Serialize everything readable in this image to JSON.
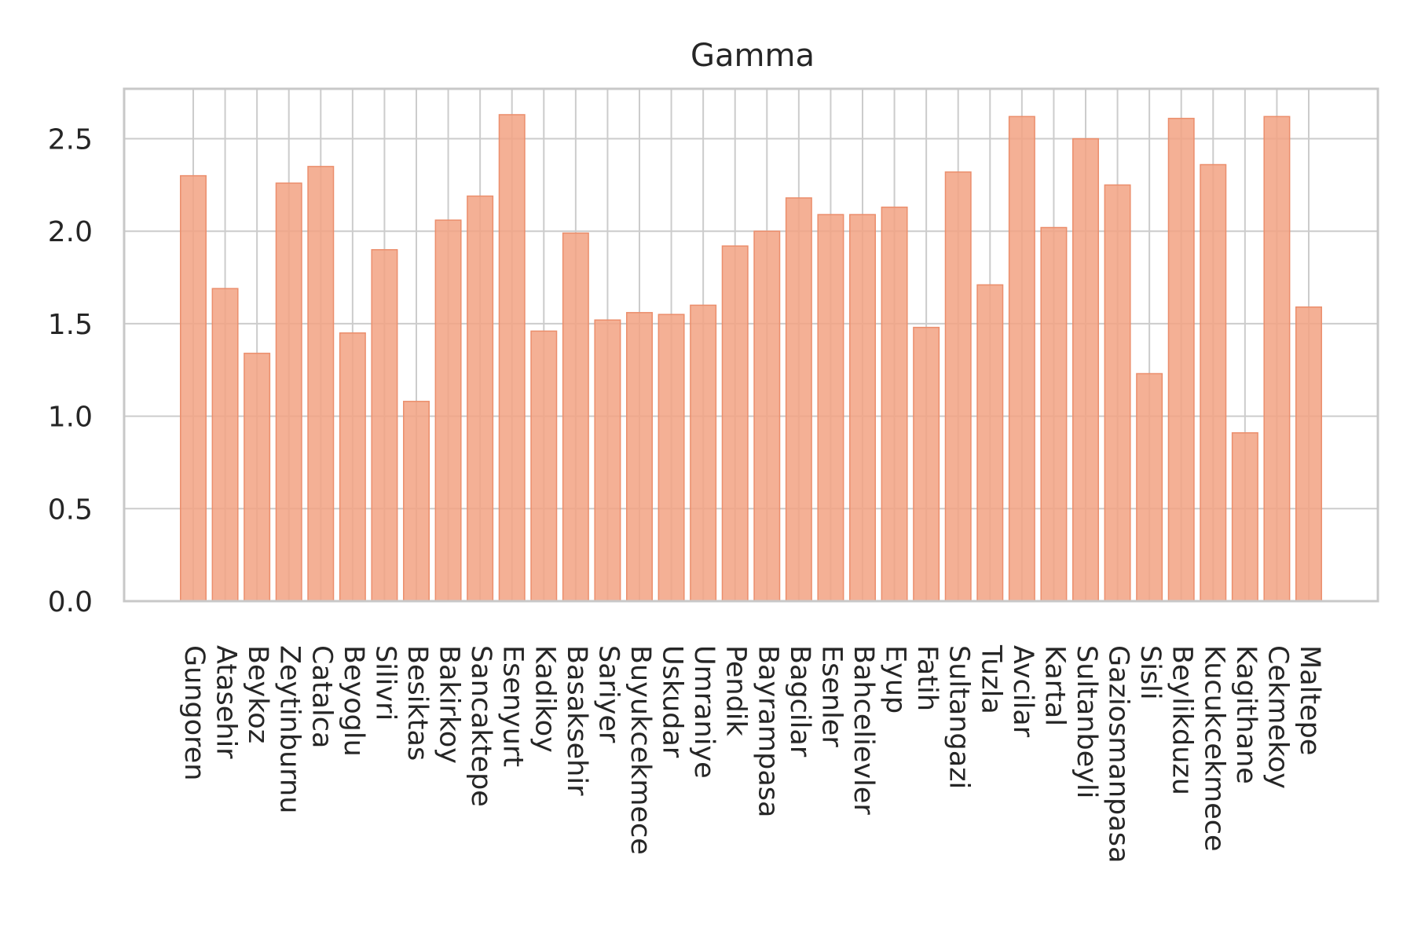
{
  "chart_data": {
    "type": "bar",
    "title": "Gamma",
    "xlabel": "",
    "ylabel": "",
    "ylim": [
      0,
      2.77
    ],
    "yticks": [
      0.0,
      0.5,
      1.0,
      1.5,
      2.0,
      2.5
    ],
    "ytick_labels": [
      "0.0",
      "0.5",
      "1.0",
      "1.5",
      "2.0",
      "2.5"
    ],
    "grid": true,
    "bar_color": "#f2a283",
    "categories": [
      "Gungoren",
      "Atasehir",
      "Beykoz",
      "Zeytinburnu",
      "Catalca",
      "Beyoglu",
      "Silivri",
      "Besiktas",
      "Bakirkoy",
      "Sancaktepe",
      "Esenyurt",
      "Kadikoy",
      "Basaksehir",
      "Sariyer",
      "Buyukcekmece",
      "Uskudar",
      "Umraniye",
      "Pendik",
      "Bayrampasa",
      "Bagcilar",
      "Esenler",
      "Bahcelievler",
      "Eyup",
      "Fatih",
      "Sultangazi",
      "Tuzla",
      "Avcilar",
      "Kartal",
      "Sultanbeyli",
      "Gaziosmanpasa",
      "Sisli",
      "Beylikduzu",
      "Kucukcekmece",
      "Kagithane",
      "Cekmekoy",
      "Maltepe"
    ],
    "values": [
      2.3,
      1.69,
      1.34,
      2.26,
      2.35,
      1.45,
      1.9,
      1.08,
      2.06,
      2.19,
      2.63,
      1.46,
      1.99,
      1.52,
      1.56,
      1.55,
      1.6,
      1.92,
      2.0,
      2.18,
      2.09,
      2.09,
      2.13,
      1.48,
      2.32,
      1.71,
      2.62,
      2.02,
      2.5,
      2.25,
      1.23,
      2.61,
      2.36,
      0.91,
      2.62,
      1.59
    ]
  }
}
